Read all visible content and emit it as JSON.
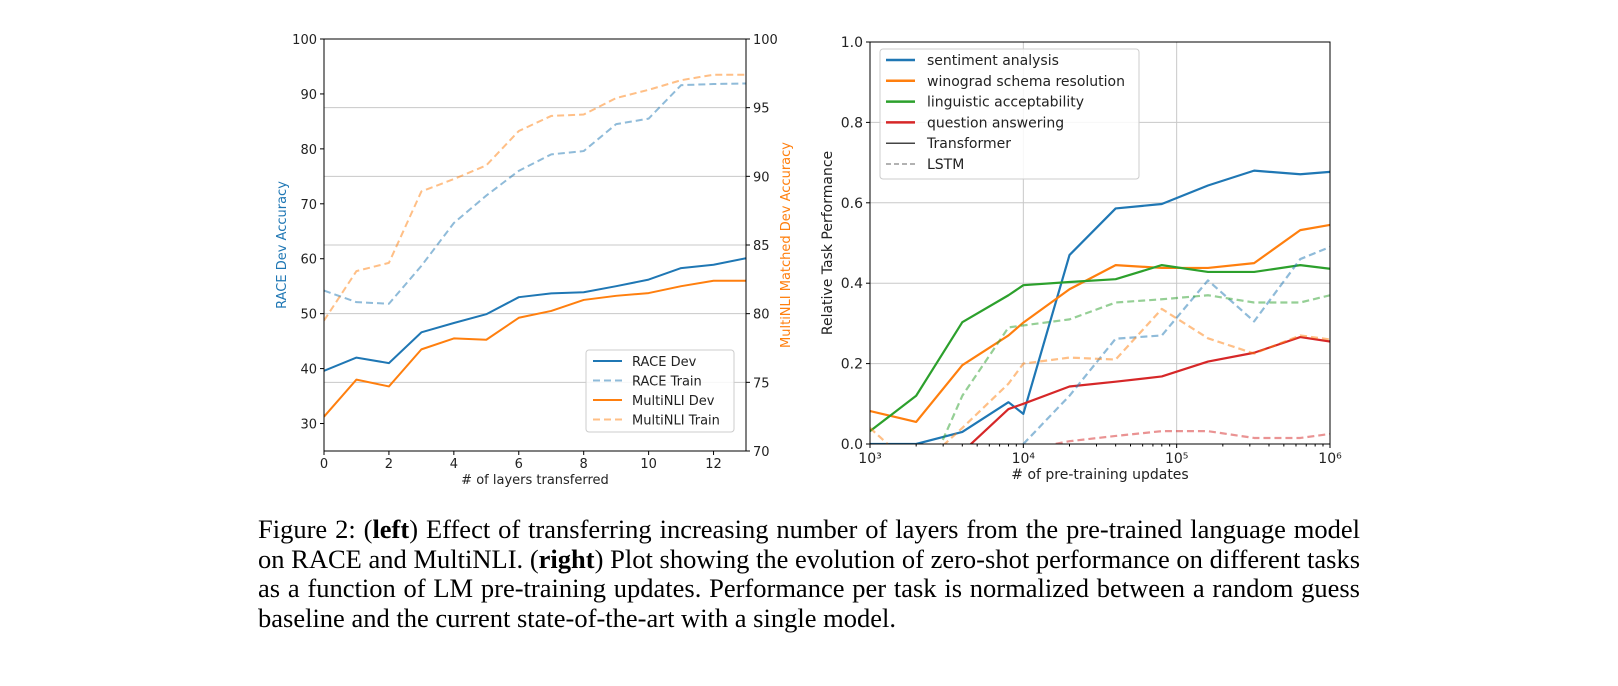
{
  "chart_data": [
    {
      "type": "line",
      "xlabel": "# of layers transferred",
      "ylabel": "RACE Dev Accuracy",
      "ylabel_right": "MultiNLI Matched Dev Accuracy",
      "ylabel_color": "#1f77b4",
      "ylabel_right_color": "#ff7f0e",
      "xlim": [
        0,
        13
      ],
      "ylim": [
        25,
        100
      ],
      "ylim_right": [
        70,
        100
      ],
      "xticks": [
        0,
        2,
        4,
        6,
        8,
        10,
        12
      ],
      "yticks": [
        30,
        40,
        50,
        60,
        70,
        80,
        90,
        100
      ],
      "yticks_right": [
        70,
        75,
        80,
        85,
        90,
        95,
        100
      ],
      "grid": "horizontal at right-axis ticks",
      "legend_position": "lower-right",
      "x": [
        0,
        1,
        2,
        3,
        4,
        5,
        6,
        7,
        8,
        9,
        10,
        11,
        12,
        13
      ],
      "series": [
        {
          "name": "RACE Dev",
          "axis": "left",
          "color": "#1f77b4",
          "dashed": false,
          "values": [
            39.6,
            42.0,
            41.0,
            46.6,
            48.3,
            49.9,
            53.0,
            53.7,
            53.9,
            55.0,
            56.2,
            58.3,
            58.9,
            60.1
          ]
        },
        {
          "name": "RACE Train",
          "axis": "left",
          "color": "#1f77b4",
          "dashed": true,
          "values": [
            54.2,
            52.1,
            51.8,
            58.7,
            66.5,
            71.5,
            76.0,
            79.0,
            79.6,
            84.5,
            85.5,
            91.6,
            91.8,
            91.9
          ]
        },
        {
          "name": "MultiNLI Dev",
          "axis": "right",
          "color": "#ff7f0e",
          "dashed": false,
          "values": [
            72.5,
            75.2,
            74.7,
            77.4,
            78.2,
            78.1,
            79.7,
            80.2,
            81.0,
            81.3,
            81.5,
            82.0,
            82.4,
            82.4
          ]
        },
        {
          "name": "MultiNLI Train",
          "axis": "right",
          "color": "#ff7f0e",
          "dashed": true,
          "values": [
            79.5,
            83.1,
            83.7,
            88.9,
            89.8,
            90.8,
            93.3,
            94.4,
            94.5,
            95.7,
            96.3,
            97.0,
            97.4,
            97.4
          ]
        }
      ]
    },
    {
      "type": "line",
      "xscale": "log",
      "xlabel": "# of pre-training updates",
      "ylabel": "Relative Task Performance",
      "xlim": [
        1000,
        1000000
      ],
      "ylim": [
        0.0,
        1.0
      ],
      "xticks": [
        1000,
        10000,
        100000,
        1000000
      ],
      "xtick_labels": [
        "10³",
        "10⁴",
        "10⁵",
        "10⁶"
      ],
      "yticks": [
        0.0,
        0.2,
        0.4,
        0.6,
        0.8,
        1.0
      ],
      "ytick_labels": [
        "0.0",
        "0.2",
        "0.4",
        "0.6",
        "0.8",
        "1.0"
      ],
      "grid": true,
      "legend_position": "top-left",
      "legend": [
        {
          "name": "sentiment analysis",
          "color": "#1f77b4",
          "dashed": false
        },
        {
          "name": "winograd schema resolution",
          "color": "#ff7f0e",
          "dashed": false
        },
        {
          "name": "linguistic acceptability",
          "color": "#2ca02c",
          "dashed": false
        },
        {
          "name": "question answering",
          "color": "#d62728",
          "dashed": false
        },
        {
          "name": "Transformer",
          "color": "#444444",
          "dashed": false
        },
        {
          "name": "LSTM",
          "color": "#999999",
          "dashed": true
        }
      ],
      "x": [
        1000,
        2000,
        4000,
        8000,
        10000,
        20000,
        40000,
        80000,
        160000,
        320000,
        640000,
        1000000
      ],
      "series": [
        {
          "task": "sentiment analysis",
          "model": "Transformer",
          "color": "#1f77b4",
          "dashed": false,
          "values": [
            0.0,
            0.0,
            0.03,
            0.104,
            0.075,
            0.47,
            0.586,
            0.597,
            0.643,
            0.68,
            0.671,
            0.677
          ]
        },
        {
          "task": "winograd schema resolution",
          "model": "Transformer",
          "color": "#ff7f0e",
          "dashed": false,
          "values": [
            0.082,
            0.055,
            0.196,
            0.27,
            0.302,
            0.385,
            0.445,
            0.438,
            0.438,
            0.45,
            0.532,
            0.545
          ]
        },
        {
          "task": "linguistic acceptability",
          "model": "Transformer",
          "color": "#2ca02c",
          "dashed": false,
          "values": [
            0.032,
            0.12,
            0.303,
            0.37,
            0.395,
            0.403,
            0.41,
            0.445,
            0.428,
            0.428,
            0.445,
            0.436
          ]
        },
        {
          "task": "question answering",
          "model": "Transformer",
          "color": "#d62728",
          "dashed": false,
          "values": [
            null,
            null,
            -0.02,
            0.087,
            0.1,
            0.143,
            0.155,
            0.168,
            0.205,
            0.227,
            0.266,
            0.255
          ]
        },
        {
          "task": "sentiment analysis",
          "model": "LSTM",
          "color": "#1f77b4",
          "dashed": true,
          "values": [
            null,
            null,
            null,
            null,
            0.0,
            0.12,
            0.262,
            0.27,
            0.407,
            0.305,
            0.46,
            0.49
          ]
        },
        {
          "task": "winograd schema resolution",
          "model": "LSTM",
          "color": "#ff7f0e",
          "dashed": true,
          "values": [
            0.04,
            -0.065,
            0.04,
            0.15,
            0.2,
            0.215,
            0.21,
            0.336,
            0.263,
            0.225,
            0.27,
            0.26
          ]
        },
        {
          "task": "linguistic acceptability",
          "model": "LSTM",
          "color": "#2ca02c",
          "dashed": true,
          "values": [
            null,
            -0.14,
            0.12,
            0.29,
            0.295,
            0.31,
            0.352,
            0.36,
            0.37,
            0.352,
            0.352,
            0.37
          ]
        },
        {
          "task": "question answering",
          "model": "LSTM",
          "color": "#d62728",
          "dashed": true,
          "values": [
            null,
            null,
            null,
            null,
            -0.015,
            0.007,
            0.02,
            0.032,
            0.032,
            0.015,
            0.015,
            0.025
          ]
        }
      ]
    }
  ],
  "caption": {
    "label": "Figure 2:",
    "left_bold": "left",
    "left_text": "Effect of transferring increasing number of layers from the pre-trained language model on RACE and MultiNLI.",
    "right_bold": "right",
    "right_text": "Plot showing the evolution of zero-shot performance on different tasks as a function of LM pre-training updates. Performance per task is normalized between a random guess baseline and the current state-of-the-art with a single model."
  }
}
